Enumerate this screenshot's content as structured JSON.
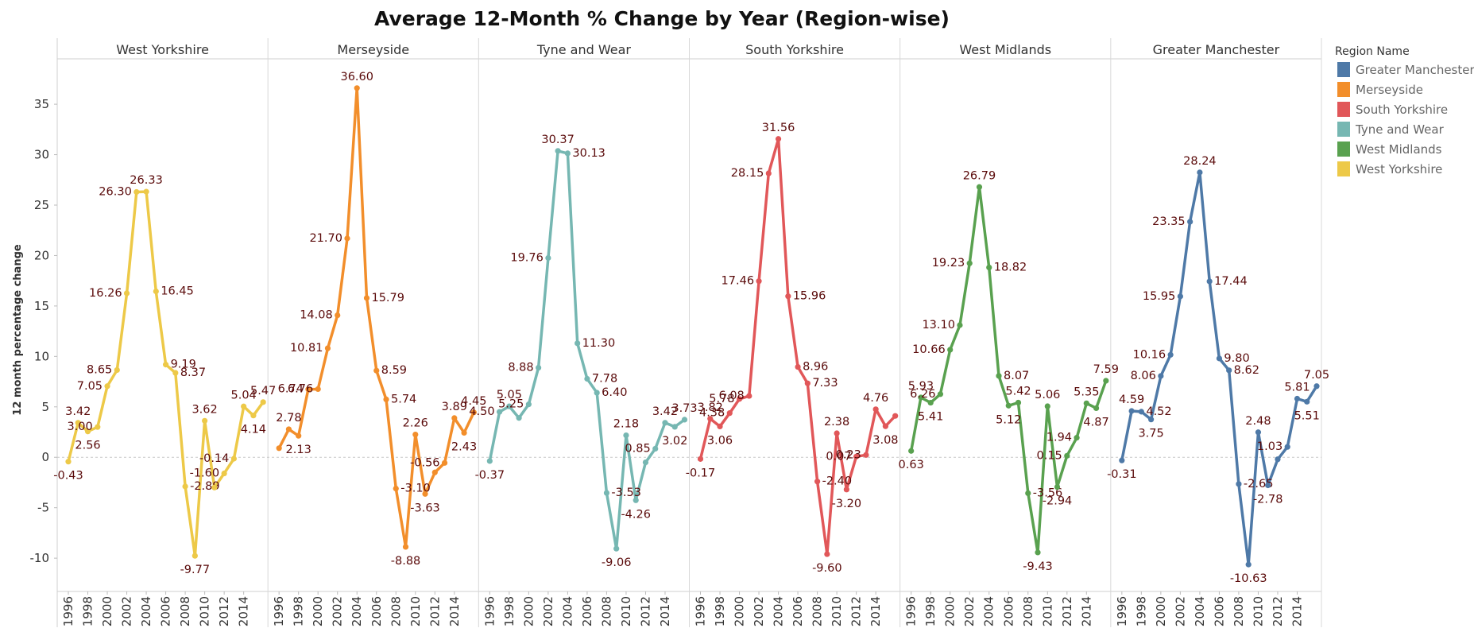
{
  "chart_data": {
    "type": "line",
    "title": "Average 12-Month % Change by Year (Region-wise)",
    "ylabel": "12 month percentage change",
    "xlabel": "",
    "ylim": [
      -13.3,
      39.5
    ],
    "yticks": [
      -10,
      -5,
      0,
      5,
      10,
      15,
      20,
      25,
      30,
      35
    ],
    "x": [
      1996,
      1997,
      1998,
      1999,
      2000,
      2001,
      2002,
      2003,
      2004,
      2005,
      2006,
      2007,
      2008,
      2009,
      2010,
      2011,
      2012,
      2013,
      2014,
      2015,
      2016
    ],
    "xticks": [
      1996,
      1998,
      2000,
      2002,
      2004,
      2006,
      2008,
      2010,
      2012,
      2014
    ],
    "grid": false,
    "legend": {
      "title": "Region Name",
      "placement": "right"
    },
    "series": [
      {
        "name": "West Yorkshire",
        "color": "#EDC948",
        "values": [
          -0.43,
          3.42,
          2.56,
          3.0,
          7.05,
          8.65,
          16.26,
          26.3,
          26.33,
          16.45,
          9.19,
          8.37,
          -2.89,
          -9.77,
          3.62,
          -3.0,
          -1.6,
          -0.14,
          5.04,
          4.14,
          5.47
        ],
        "labels": [
          "-0.43",
          "3.42",
          "2.56",
          "3.00",
          "7.05",
          "8.65",
          "16.26",
          "26.30",
          "26.33",
          "16.45",
          "9.19",
          "8.37",
          "-2.89",
          "-9.77",
          "3.62",
          "",
          "-1.60",
          "-0.14",
          "5.04",
          "4.14",
          "5.47"
        ]
      },
      {
        "name": "Merseyside",
        "color": "#F28E2B",
        "values": [
          0.9,
          2.78,
          2.13,
          6.74,
          6.76,
          10.81,
          14.08,
          21.7,
          36.6,
          15.79,
          8.59,
          5.74,
          -3.1,
          -8.88,
          2.26,
          -3.63,
          -1.5,
          -0.56,
          3.89,
          2.43,
          4.45
        ],
        "labels": [
          "",
          "2.78",
          "2.13",
          "6.74",
          "6.76",
          "10.81",
          "14.08",
          "21.70",
          "36.60",
          "15.79",
          "8.59",
          "5.74",
          "-3.10",
          "-8.88",
          "2.26",
          "-3.63",
          "",
          "-0.56",
          "3.89",
          "2.43",
          "4.45"
        ]
      },
      {
        "name": "Tyne and Wear",
        "color": "#76B7B2",
        "values": [
          -0.37,
          4.5,
          5.05,
          3.9,
          5.25,
          8.88,
          19.76,
          30.37,
          30.13,
          11.3,
          7.78,
          6.4,
          -3.53,
          -9.06,
          2.18,
          -4.26,
          -0.5,
          0.85,
          3.42,
          3.02,
          3.73
        ],
        "labels": [
          "-0.37",
          "4.50",
          "5.05",
          "",
          "5.25",
          "8.88",
          "19.76",
          "30.37",
          "30.13",
          "11.30",
          "7.78",
          "6.40",
          "-3.53",
          "-9.06",
          "2.18",
          "-4.26",
          "",
          "0.85",
          "3.42",
          "3.02",
          "3.73"
        ]
      },
      {
        "name": "South Yorkshire",
        "color": "#E15759",
        "values": [
          -0.17,
          3.82,
          3.06,
          4.38,
          5.78,
          6.08,
          17.46,
          28.15,
          31.56,
          15.96,
          8.96,
          7.33,
          -2.4,
          -9.6,
          2.38,
          -3.2,
          0.07,
          0.23,
          4.76,
          3.08,
          4.1
        ],
        "labels": [
          "-0.17",
          "3.82",
          "3.06",
          "4.38",
          "5.78",
          "6.08",
          "17.46",
          "28.15",
          "31.56",
          "15.96",
          "8.96",
          "7.33",
          "-2.40",
          "-9.60",
          "2.38",
          "-3.20",
          "0.07",
          "0.23",
          "4.76",
          "3.08",
          ""
        ]
      },
      {
        "name": "West Midlands",
        "color": "#59A14F",
        "values": [
          0.63,
          5.93,
          5.41,
          6.26,
          10.66,
          13.1,
          19.23,
          26.79,
          18.82,
          8.07,
          5.12,
          5.42,
          -3.56,
          -9.43,
          5.06,
          -2.94,
          0.15,
          1.94,
          5.35,
          4.87,
          7.59
        ],
        "labels": [
          "0.63",
          "5.93",
          "5.41",
          "6.26",
          "10.66",
          "13.10",
          "19.23",
          "26.79",
          "18.82",
          "8.07",
          "5.12",
          "5.42",
          "-3.56",
          "-9.43",
          "5.06",
          "-2.94",
          "0.15",
          "1.94",
          "5.35",
          "4.87",
          "7.59"
        ]
      },
      {
        "name": "Greater Manchester",
        "color": "#4E79A7",
        "values": [
          -0.31,
          4.59,
          4.52,
          3.75,
          8.06,
          10.16,
          15.95,
          23.35,
          28.24,
          17.44,
          9.8,
          8.62,
          -2.65,
          -10.63,
          2.48,
          -2.78,
          -0.2,
          1.03,
          5.81,
          5.51,
          7.05
        ],
        "labels": [
          "-0.31",
          "4.59",
          "4.52",
          "3.75",
          "8.06",
          "10.16",
          "15.95",
          "23.35",
          "28.24",
          "17.44",
          "9.80",
          "8.62",
          "-2.65",
          "-10.63",
          "2.48",
          "-2.78",
          "",
          "1.03",
          "5.81",
          "5.51",
          "7.05"
        ]
      }
    ],
    "panel_order": [
      "West Yorkshire",
      "Merseyside",
      "Tyne and Wear",
      "South Yorkshire",
      "West Midlands",
      "Greater Manchester"
    ],
    "legend_order": [
      "Greater Manchester",
      "Merseyside",
      "South Yorkshire",
      "Tyne and Wear",
      "West Midlands",
      "West Yorkshire"
    ]
  }
}
